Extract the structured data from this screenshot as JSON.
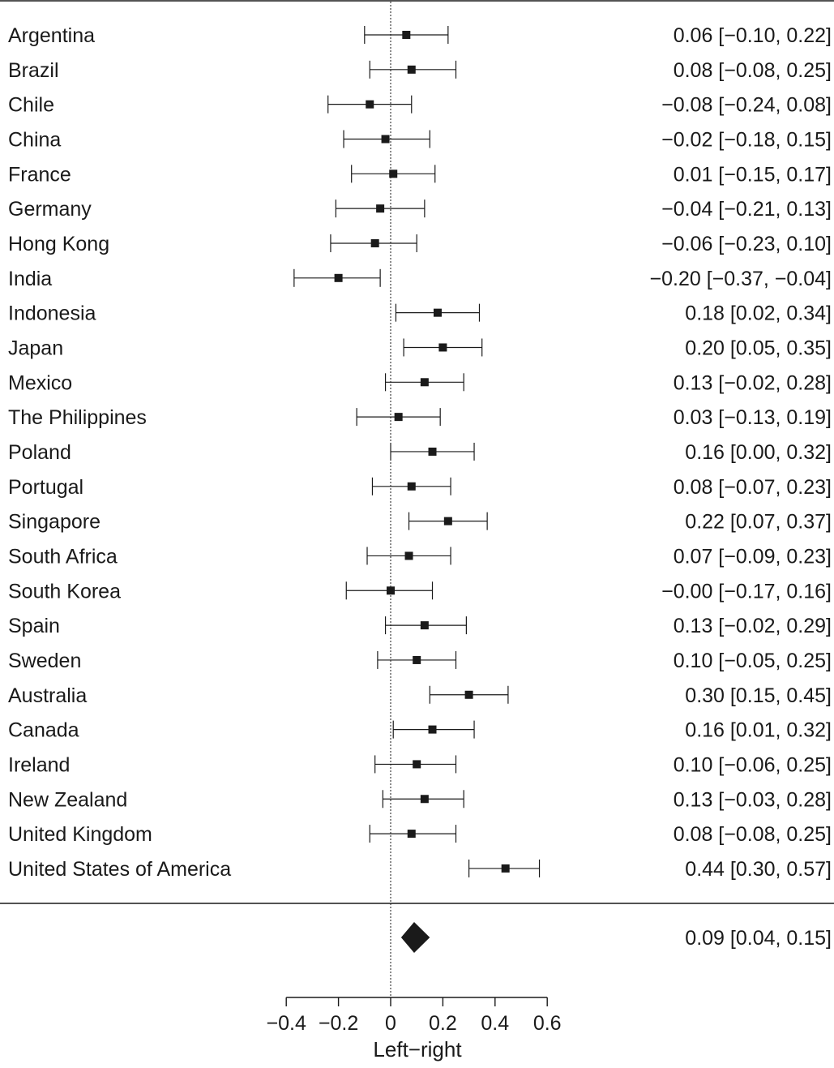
{
  "chart_data": {
    "type": "forest",
    "title": "",
    "xlabel": "Left−right",
    "ylabel": "",
    "xlim": [
      -0.4,
      0.6
    ],
    "xticks": [
      -0.4,
      -0.2,
      0,
      0.2,
      0.4,
      0.6
    ],
    "xtick_labels": [
      "−0.4",
      "−0.2",
      "0",
      "0.2",
      "0.4",
      "0.6"
    ],
    "reference_line": 0,
    "grid": false,
    "rows": [
      {
        "label": "Argentina",
        "estimate": 0.06,
        "lower": -0.1,
        "upper": 0.22,
        "ci_text": "0.06 [−0.10, 0.22]"
      },
      {
        "label": "Brazil",
        "estimate": 0.08,
        "lower": -0.08,
        "upper": 0.25,
        "ci_text": "0.08 [−0.08, 0.25]"
      },
      {
        "label": "Chile",
        "estimate": -0.08,
        "lower": -0.24,
        "upper": 0.08,
        "ci_text": "−0.08 [−0.24, 0.08]"
      },
      {
        "label": "China",
        "estimate": -0.02,
        "lower": -0.18,
        "upper": 0.15,
        "ci_text": "−0.02 [−0.18, 0.15]"
      },
      {
        "label": "France",
        "estimate": 0.01,
        "lower": -0.15,
        "upper": 0.17,
        "ci_text": "0.01 [−0.15, 0.17]"
      },
      {
        "label": "Germany",
        "estimate": -0.04,
        "lower": -0.21,
        "upper": 0.13,
        "ci_text": "−0.04 [−0.21, 0.13]"
      },
      {
        "label": "Hong Kong",
        "estimate": -0.06,
        "lower": -0.23,
        "upper": 0.1,
        "ci_text": "−0.06 [−0.23, 0.10]"
      },
      {
        "label": "India",
        "estimate": -0.2,
        "lower": -0.37,
        "upper": -0.04,
        "ci_text": "−0.20 [−0.37, −0.04]"
      },
      {
        "label": "Indonesia",
        "estimate": 0.18,
        "lower": 0.02,
        "upper": 0.34,
        "ci_text": "0.18 [0.02, 0.34]"
      },
      {
        "label": "Japan",
        "estimate": 0.2,
        "lower": 0.05,
        "upper": 0.35,
        "ci_text": "0.20 [0.05, 0.35]"
      },
      {
        "label": "Mexico",
        "estimate": 0.13,
        "lower": -0.02,
        "upper": 0.28,
        "ci_text": "0.13 [−0.02, 0.28]"
      },
      {
        "label": "The Philippines",
        "estimate": 0.03,
        "lower": -0.13,
        "upper": 0.19,
        "ci_text": "0.03 [−0.13, 0.19]"
      },
      {
        "label": "Poland",
        "estimate": 0.16,
        "lower": 0.0,
        "upper": 0.32,
        "ci_text": "0.16 [0.00, 0.32]"
      },
      {
        "label": "Portugal",
        "estimate": 0.08,
        "lower": -0.07,
        "upper": 0.23,
        "ci_text": "0.08 [−0.07, 0.23]"
      },
      {
        "label": "Singapore",
        "estimate": 0.22,
        "lower": 0.07,
        "upper": 0.37,
        "ci_text": "0.22 [0.07, 0.37]"
      },
      {
        "label": "South Africa",
        "estimate": 0.07,
        "lower": -0.09,
        "upper": 0.23,
        "ci_text": "0.07 [−0.09, 0.23]"
      },
      {
        "label": "South Korea",
        "estimate": -0.0,
        "lower": -0.17,
        "upper": 0.16,
        "ci_text": "−0.00 [−0.17, 0.16]"
      },
      {
        "label": "Spain",
        "estimate": 0.13,
        "lower": -0.02,
        "upper": 0.29,
        "ci_text": "0.13 [−0.02, 0.29]"
      },
      {
        "label": "Sweden",
        "estimate": 0.1,
        "lower": -0.05,
        "upper": 0.25,
        "ci_text": "0.10 [−0.05, 0.25]"
      },
      {
        "label": "Australia",
        "estimate": 0.3,
        "lower": 0.15,
        "upper": 0.45,
        "ci_text": "0.30 [0.15, 0.45]"
      },
      {
        "label": "Canada",
        "estimate": 0.16,
        "lower": 0.01,
        "upper": 0.32,
        "ci_text": "0.16 [0.01, 0.32]"
      },
      {
        "label": "Ireland",
        "estimate": 0.1,
        "lower": -0.06,
        "upper": 0.25,
        "ci_text": "0.10 [−0.06, 0.25]"
      },
      {
        "label": "New Zealand",
        "estimate": 0.13,
        "lower": -0.03,
        "upper": 0.28,
        "ci_text": "0.13 [−0.03, 0.28]"
      },
      {
        "label": "United Kingdom",
        "estimate": 0.08,
        "lower": -0.08,
        "upper": 0.25,
        "ci_text": "0.08 [−0.08, 0.25]"
      },
      {
        "label": "United States of America",
        "estimate": 0.44,
        "lower": 0.3,
        "upper": 0.57,
        "ci_text": "0.44 [0.30, 0.57]"
      }
    ],
    "summary": {
      "label": "",
      "estimate": 0.09,
      "lower": 0.04,
      "upper": 0.15,
      "ci_text": "0.09 [0.04, 0.15]"
    },
    "colors": {
      "ink": "#1a1a1a",
      "background": "#ffffff"
    }
  }
}
